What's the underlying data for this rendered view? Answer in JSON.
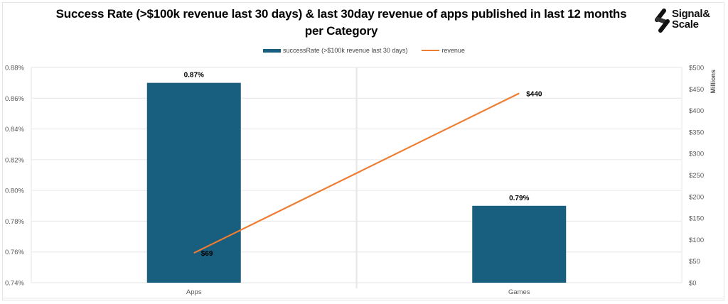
{
  "header": {
    "title_line1": "Success Rate (>$100k revenue last 30 days) & last 30day revenue of apps  published in last 12 months",
    "title_line2": "per Category",
    "logo_line1": "Signal&",
    "logo_line2": "Scale"
  },
  "legend": {
    "bar_label": "successRate (>$100k revenue last 30 days)",
    "line_label": "revenue"
  },
  "colors": {
    "bar": "#175e7f",
    "line": "#ed7d31",
    "grid": "#e6e6e6"
  },
  "chart_data": {
    "type": "bar",
    "title": "Success Rate (>$100k revenue last 30 days) & last 30day revenue of apps  published in last 12 months per Category",
    "categories": [
      "Apps",
      "Games"
    ],
    "series": [
      {
        "name": "successRate (>$100k revenue last 30 days)",
        "type": "bar",
        "axis": "left",
        "values": [
          0.87,
          0.79
        ],
        "labels": [
          "0.87%",
          "0.79%"
        ]
      },
      {
        "name": "revenue",
        "type": "line",
        "axis": "right",
        "values": [
          69,
          440
        ],
        "labels": [
          "$69",
          "$440"
        ]
      }
    ],
    "y_left": {
      "ylim": [
        0.74,
        0.88
      ],
      "ticks": [
        0.74,
        0.76,
        0.78,
        0.8,
        0.82,
        0.84,
        0.86,
        0.88
      ],
      "tick_labels": [
        "0.74%",
        "0.76%",
        "0.78%",
        "0.80%",
        "0.82%",
        "0.84%",
        "0.86%",
        "0.88%"
      ],
      "label": ""
    },
    "y_right": {
      "ylim": [
        0,
        500
      ],
      "ticks": [
        0,
        50,
        100,
        150,
        200,
        250,
        300,
        350,
        400,
        450,
        500
      ],
      "tick_labels": [
        "$0",
        "$50",
        "$100",
        "$150",
        "$200",
        "$250",
        "$300",
        "$350",
        "$400",
        "$450",
        "$500"
      ],
      "label": "Millions"
    },
    "xlabel": "",
    "grid": true,
    "legend_position": "top-center"
  }
}
